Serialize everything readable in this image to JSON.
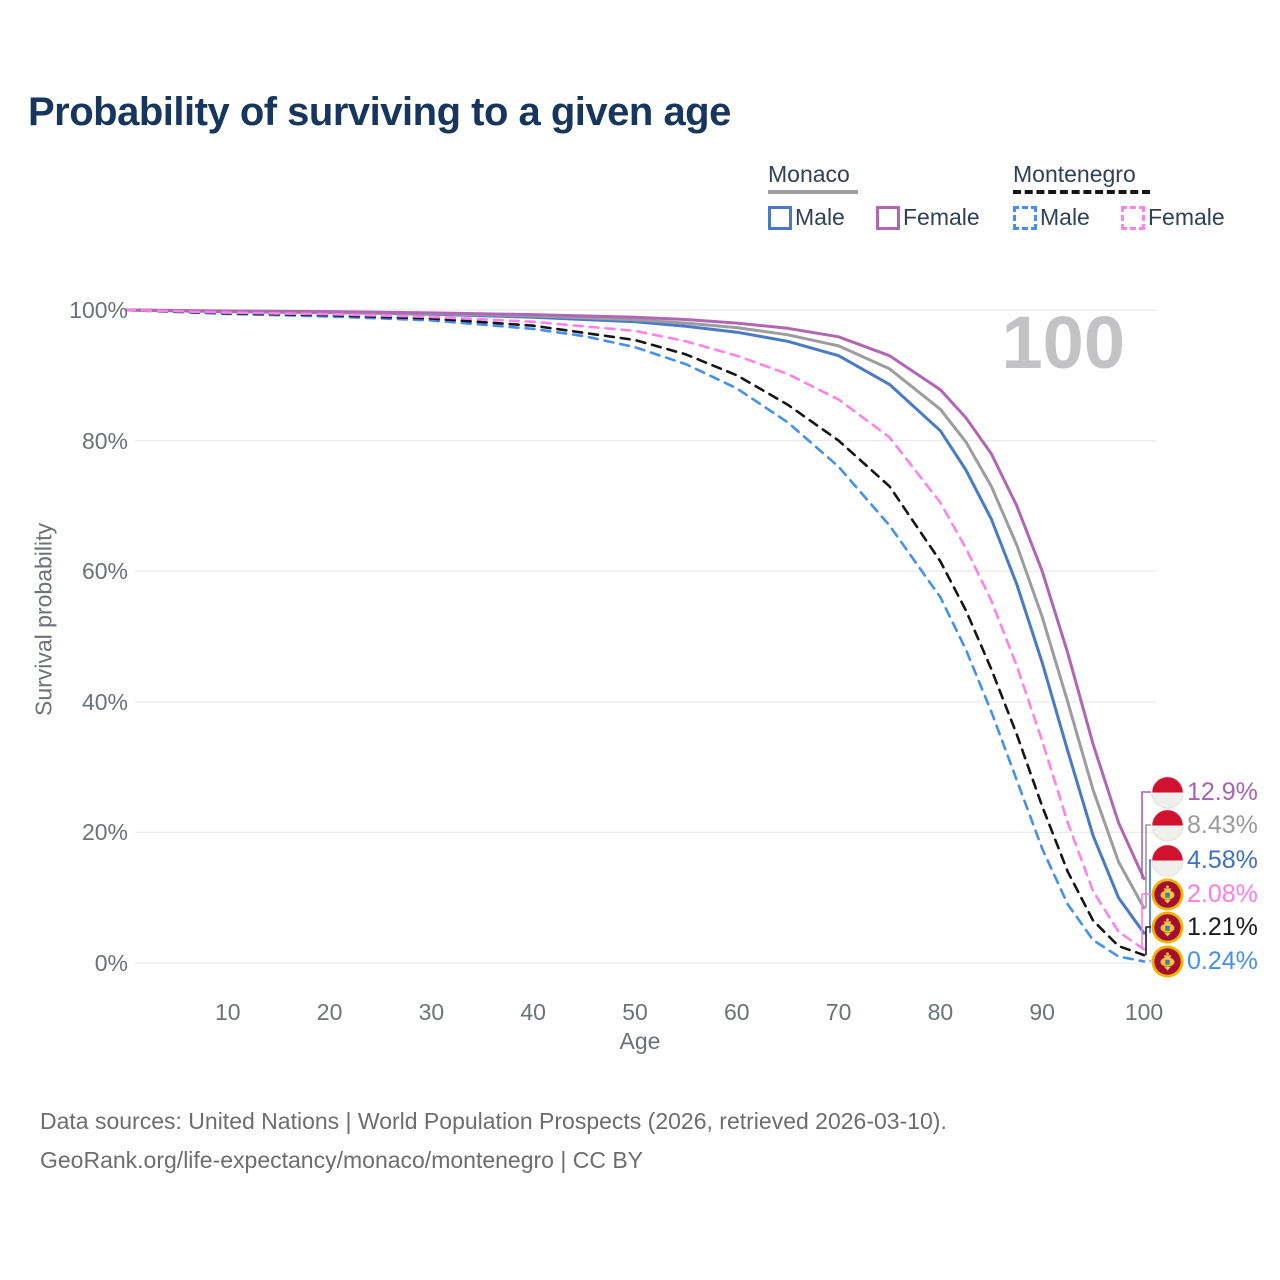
{
  "title": "Probability of surviving to a given age",
  "legend": {
    "groups": [
      {
        "name": "Monaco",
        "style": "solid",
        "items": [
          {
            "label": "Male",
            "color": "#4a79c5"
          },
          {
            "label": "Female",
            "color": "#af67b4"
          }
        ]
      },
      {
        "name": "Montenegro",
        "style": "dashed",
        "items": [
          {
            "label": "Male",
            "color": "#4590ef"
          },
          {
            "label": "Female",
            "color": "#ff82e4"
          }
        ]
      }
    ]
  },
  "chart_data": {
    "type": "line",
    "title": "Probability of surviving to a given age",
    "xlabel": "Age",
    "ylabel": "Survival probability",
    "watermark": "100",
    "xlim": [
      0,
      100
    ],
    "ylim": [
      0,
      100
    ],
    "grid": "horizontal",
    "legend_position": "top-right",
    "x_ticks": [
      {
        "label": "10",
        "value": 10
      },
      {
        "label": "20",
        "value": 20
      },
      {
        "label": "30",
        "value": 30
      },
      {
        "label": "40",
        "value": 40
      },
      {
        "label": "50",
        "value": 50
      },
      {
        "label": "60",
        "value": 60
      },
      {
        "label": "70",
        "value": 70
      },
      {
        "label": "80",
        "value": 80
      },
      {
        "label": "90",
        "value": 90
      },
      {
        "label": "100",
        "value": 100
      }
    ],
    "y_ticks": [
      {
        "label": "0%",
        "value": 0
      },
      {
        "label": "20%",
        "value": 20
      },
      {
        "label": "40%",
        "value": 40
      },
      {
        "label": "60%",
        "value": 60
      },
      {
        "label": "80%",
        "value": 80
      },
      {
        "label": "100%",
        "value": 100
      }
    ],
    "series": [
      {
        "name": "Monaco Male",
        "country": "Monaco",
        "sex": "Male",
        "color": "#4a79c5",
        "dash": false,
        "points": [
          [
            0,
            100
          ],
          [
            10,
            99.75
          ],
          [
            20,
            99.6
          ],
          [
            30,
            99.35
          ],
          [
            40,
            98.9
          ],
          [
            50,
            98.2
          ],
          [
            55,
            97.5
          ],
          [
            60,
            96.6
          ],
          [
            65,
            95.2
          ],
          [
            70,
            93.0
          ],
          [
            75,
            88.6
          ],
          [
            80,
            81.5
          ],
          [
            82.5,
            75.5
          ],
          [
            85,
            68.0
          ],
          [
            87.5,
            58.0
          ],
          [
            90,
            46.0
          ],
          [
            92.5,
            32.5
          ],
          [
            95,
            19.5
          ],
          [
            97.5,
            10.0
          ],
          [
            100,
            4.58
          ]
        ]
      },
      {
        "name": "Monaco All",
        "country": "Monaco",
        "sex": "All",
        "color": "#9d9da1",
        "dash": false,
        "points": [
          [
            0,
            100
          ],
          [
            10,
            99.8
          ],
          [
            20,
            99.65
          ],
          [
            30,
            99.45
          ],
          [
            40,
            99.1
          ],
          [
            50,
            98.5
          ],
          [
            55,
            98.0
          ],
          [
            60,
            97.3
          ],
          [
            65,
            96.2
          ],
          [
            70,
            94.5
          ],
          [
            75,
            91.0
          ],
          [
            80,
            84.8
          ],
          [
            82.5,
            79.8
          ],
          [
            85,
            73.0
          ],
          [
            87.5,
            64.0
          ],
          [
            90,
            53.0
          ],
          [
            92.5,
            40.0
          ],
          [
            95,
            26.5
          ],
          [
            97.5,
            15.5
          ],
          [
            100,
            8.43
          ]
        ]
      },
      {
        "name": "Monaco Female",
        "country": "Monaco",
        "sex": "Female",
        "color": "#af67b4",
        "dash": false,
        "points": [
          [
            0,
            100
          ],
          [
            10,
            99.85
          ],
          [
            20,
            99.75
          ],
          [
            30,
            99.55
          ],
          [
            40,
            99.3
          ],
          [
            50,
            98.9
          ],
          [
            55,
            98.55
          ],
          [
            60,
            98.0
          ],
          [
            65,
            97.2
          ],
          [
            70,
            95.9
          ],
          [
            75,
            93.0
          ],
          [
            80,
            87.8
          ],
          [
            82.5,
            83.5
          ],
          [
            85,
            78.0
          ],
          [
            87.5,
            70.0
          ],
          [
            90,
            60.0
          ],
          [
            92.5,
            47.5
          ],
          [
            95,
            33.5
          ],
          [
            97.5,
            21.5
          ],
          [
            100,
            12.9
          ]
        ]
      },
      {
        "name": "Montenegro Male",
        "country": "Montenegro",
        "sex": "Male",
        "color": "#4590ef",
        "dash": true,
        "points": [
          [
            0,
            100
          ],
          [
            10,
            99.4
          ],
          [
            20,
            99.0
          ],
          [
            30,
            98.4
          ],
          [
            40,
            97.1
          ],
          [
            45,
            96.0
          ],
          [
            50,
            94.3
          ],
          [
            55,
            91.7
          ],
          [
            60,
            88.0
          ],
          [
            65,
            82.8
          ],
          [
            70,
            76.0
          ],
          [
            75,
            67.0
          ],
          [
            80,
            56.0
          ],
          [
            82.5,
            48.0
          ],
          [
            85,
            38.5
          ],
          [
            87.5,
            28.0
          ],
          [
            90,
            17.5
          ],
          [
            92.5,
            9.0
          ],
          [
            95,
            3.5
          ],
          [
            97.5,
            1.0
          ],
          [
            100,
            0.24
          ]
        ]
      },
      {
        "name": "Montenegro All",
        "country": "Montenegro",
        "sex": "All",
        "color": "#161616",
        "dash": true,
        "points": [
          [
            0,
            100
          ],
          [
            10,
            99.5
          ],
          [
            20,
            99.2
          ],
          [
            30,
            98.7
          ],
          [
            40,
            97.6
          ],
          [
            50,
            95.4
          ],
          [
            55,
            93.2
          ],
          [
            60,
            90.0
          ],
          [
            65,
            85.5
          ],
          [
            70,
            80.0
          ],
          [
            75,
            73.0
          ],
          [
            80,
            61.5
          ],
          [
            82.5,
            54.0
          ],
          [
            85,
            45.0
          ],
          [
            87.5,
            35.0
          ],
          [
            90,
            24.0
          ],
          [
            92.5,
            14.0
          ],
          [
            95,
            6.5
          ],
          [
            97.5,
            2.6
          ],
          [
            100,
            1.21
          ]
        ]
      },
      {
        "name": "Montenegro Female",
        "country": "Montenegro",
        "sex": "Female",
        "color": "#ff82e4",
        "dash": true,
        "points": [
          [
            0,
            100
          ],
          [
            10,
            99.6
          ],
          [
            20,
            99.35
          ],
          [
            30,
            98.95
          ],
          [
            40,
            98.2
          ],
          [
            50,
            96.8
          ],
          [
            55,
            95.2
          ],
          [
            60,
            93.0
          ],
          [
            65,
            90.2
          ],
          [
            70,
            86.3
          ],
          [
            75,
            80.5
          ],
          [
            80,
            70.5
          ],
          [
            82.5,
            63.5
          ],
          [
            85,
            55.5
          ],
          [
            87.5,
            45.5
          ],
          [
            90,
            34.0
          ],
          [
            92.5,
            21.5
          ],
          [
            95,
            11.0
          ],
          [
            97.5,
            4.8
          ],
          [
            100,
            2.08
          ]
        ]
      }
    ],
    "end_labels": [
      {
        "value": "12.9%",
        "pct": 12.9,
        "flag": "monaco",
        "color": "#a762b5"
      },
      {
        "value": "8.43%",
        "pct": 8.43,
        "flag": "monaco",
        "color": "#9b9b9b"
      },
      {
        "value": "4.58%",
        "pct": 4.58,
        "flag": "monaco",
        "color": "#3e70c6"
      },
      {
        "value": "2.08%",
        "pct": 2.08,
        "flag": "montenegro",
        "color": "#ff7ce2"
      },
      {
        "value": "1.21%",
        "pct": 1.21,
        "flag": "montenegro",
        "color": "#1b1b1b"
      },
      {
        "value": "0.24%",
        "pct": 0.24,
        "flag": "montenegro",
        "color": "#4590ef"
      }
    ]
  },
  "footer": {
    "line1": "Data sources: United Nations | World Population Prospects (2026, retrieved 2026-03-10).",
    "line2": "GeoRank.org/life-expectancy/monaco/montenegro | CC BY"
  }
}
